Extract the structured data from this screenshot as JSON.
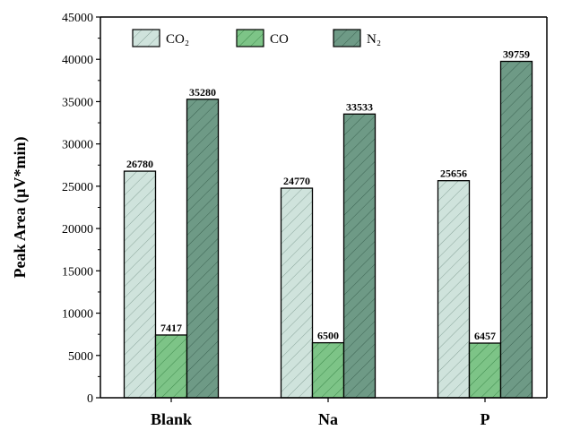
{
  "chart_data": {
    "type": "bar",
    "categories": [
      "Blank",
      "Na",
      "P"
    ],
    "series": [
      {
        "name": "CO₂",
        "values": [
          26780,
          24770,
          25656
        ],
        "color": "#cfe3dc",
        "hatch": "#8aa59b"
      },
      {
        "name": "CO",
        "values": [
          7417,
          6500,
          6457
        ],
        "color": "#7dc487",
        "hatch": "#3f8a4d"
      },
      {
        "name": "N₂",
        "values": [
          35280,
          33533,
          39759
        ],
        "color": "#6e9a86",
        "hatch": "#3e6554"
      }
    ],
    "ylabel": "Peak Area (µV*min)",
    "ylim": [
      0,
      45000
    ],
    "yticks": [
      0,
      5000,
      10000,
      15000,
      20000,
      25000,
      30000,
      35000,
      40000,
      45000
    ],
    "data_labels": [
      [
        "26780",
        "24770",
        "25656"
      ],
      [
        "7417",
        "6500",
        "6457"
      ],
      [
        "35280",
        "33533",
        "39759"
      ]
    ],
    "legend_position": "top",
    "grid": false
  }
}
